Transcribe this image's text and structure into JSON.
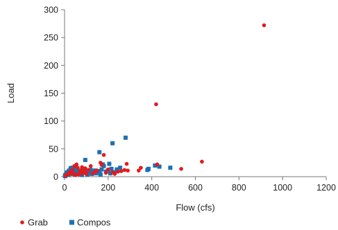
{
  "chart_data": {
    "type": "scatter",
    "xlabel": "Flow (cfs)",
    "ylabel": "Load",
    "xlim": [
      0,
      1200
    ],
    "ylim": [
      0,
      300
    ],
    "x_ticks": [
      0,
      200,
      400,
      600,
      800,
      1000,
      1200
    ],
    "y_ticks": [
      0,
      50,
      100,
      150,
      200,
      250,
      300
    ],
    "grid": false,
    "legend_position": "bottom-left",
    "series": [
      {
        "name": "Grab",
        "marker": "circle",
        "color": "#e31a1c",
        "points": [
          [
            915,
            272
          ],
          [
            420,
            130
          ],
          [
            630,
            27
          ],
          [
            535,
            14
          ],
          [
            425,
            22
          ],
          [
            350,
            16
          ],
          [
            340,
            11
          ],
          [
            285,
            23
          ],
          [
            290,
            11
          ],
          [
            275,
            12
          ],
          [
            260,
            10
          ],
          [
            245,
            9
          ],
          [
            180,
            39
          ],
          [
            200,
            13
          ],
          [
            165,
            25
          ],
          [
            170,
            21
          ],
          [
            150,
            11
          ],
          [
            120,
            19
          ],
          [
            110,
            12
          ],
          [
            95,
            15
          ],
          [
            90,
            10
          ],
          [
            80,
            17
          ],
          [
            70,
            8
          ],
          [
            60,
            16
          ],
          [
            55,
            22
          ],
          [
            45,
            19
          ],
          [
            40,
            6
          ],
          [
            35,
            12
          ],
          [
            30,
            9
          ],
          [
            25,
            5
          ],
          [
            20,
            7
          ],
          [
            15,
            4
          ],
          [
            10,
            3
          ],
          [
            5,
            2
          ],
          [
            130,
            6
          ],
          [
            100,
            5
          ],
          [
            220,
            8
          ],
          [
            65,
            4
          ],
          [
            85,
            6
          ],
          [
            140,
            9
          ],
          [
            190,
            7
          ],
          [
            230,
            5
          ],
          [
            50,
            3
          ],
          [
            75,
            11
          ]
        ]
      },
      {
        "name": "Compos",
        "marker": "square",
        "color": "#1f6fb2",
        "points": [
          [
            280,
            70
          ],
          [
            220,
            60
          ],
          [
            160,
            44
          ],
          [
            95,
            30
          ],
          [
            175,
            22
          ],
          [
            205,
            23
          ],
          [
            180,
            19
          ],
          [
            415,
            20
          ],
          [
            435,
            18
          ],
          [
            485,
            16
          ],
          [
            385,
            14
          ],
          [
            380,
            12
          ],
          [
            255,
            16
          ],
          [
            240,
            13
          ],
          [
            215,
            14
          ],
          [
            200,
            11
          ],
          [
            190,
            9
          ],
          [
            170,
            13
          ],
          [
            160,
            10
          ],
          [
            150,
            8
          ],
          [
            140,
            11
          ],
          [
            130,
            9
          ],
          [
            120,
            12
          ],
          [
            110,
            7
          ],
          [
            100,
            10
          ],
          [
            90,
            8
          ],
          [
            85,
            12
          ],
          [
            75,
            6
          ],
          [
            70,
            11
          ],
          [
            60,
            9
          ],
          [
            55,
            7
          ],
          [
            50,
            14
          ],
          [
            45,
            10
          ],
          [
            40,
            8
          ],
          [
            35,
            16
          ],
          [
            30,
            12
          ],
          [
            25,
            6
          ],
          [
            20,
            10
          ],
          [
            15,
            8
          ],
          [
            12,
            5
          ],
          [
            8,
            4
          ],
          [
            5,
            3
          ],
          [
            3,
            1
          ],
          [
            10,
            7
          ],
          [
            18,
            3
          ],
          [
            28,
            15
          ],
          [
            38,
            5
          ],
          [
            48,
            4
          ],
          [
            65,
            5
          ],
          [
            80,
            3
          ],
          [
            105,
            4
          ],
          [
            125,
            5
          ],
          [
            145,
            6
          ],
          [
            165,
            4
          ],
          [
            210,
            6
          ],
          [
            230,
            8
          ],
          [
            2,
            2
          ],
          [
            22,
            11
          ]
        ]
      }
    ]
  }
}
